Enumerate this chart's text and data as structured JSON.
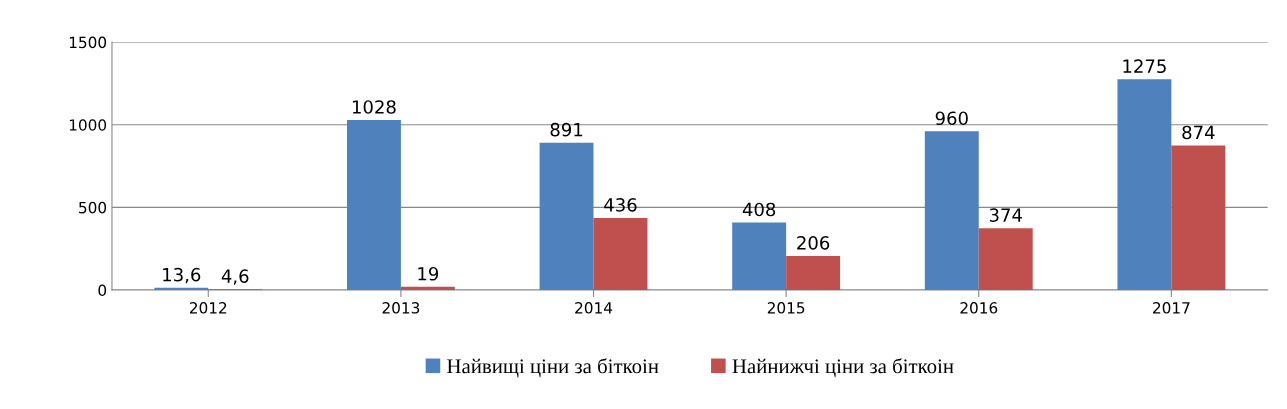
{
  "chart_data": {
    "type": "bar",
    "categories": [
      "2012",
      "2013",
      "2014",
      "2015",
      "2016",
      "2017"
    ],
    "series": [
      {
        "name": "Найвищі ціни за біткоін",
        "color": "#4f81bd",
        "values": [
          13.6,
          1028,
          891,
          408,
          960,
          1275
        ],
        "value_labels": [
          "13,6",
          "1028",
          "891",
          "408",
          "960",
          "1275"
        ]
      },
      {
        "name": "Найнижчі ціни за біткоін",
        "color": "#c0504d",
        "values": [
          4.6,
          19,
          436,
          206,
          374,
          874
        ],
        "value_labels": [
          "4,6",
          "19",
          "436",
          "206",
          "374",
          "874"
        ]
      }
    ],
    "ylim": [
      0,
      1500
    ],
    "yticks": [
      0,
      500,
      1000,
      1500
    ],
    "grid": "y",
    "legend": "bottom"
  }
}
